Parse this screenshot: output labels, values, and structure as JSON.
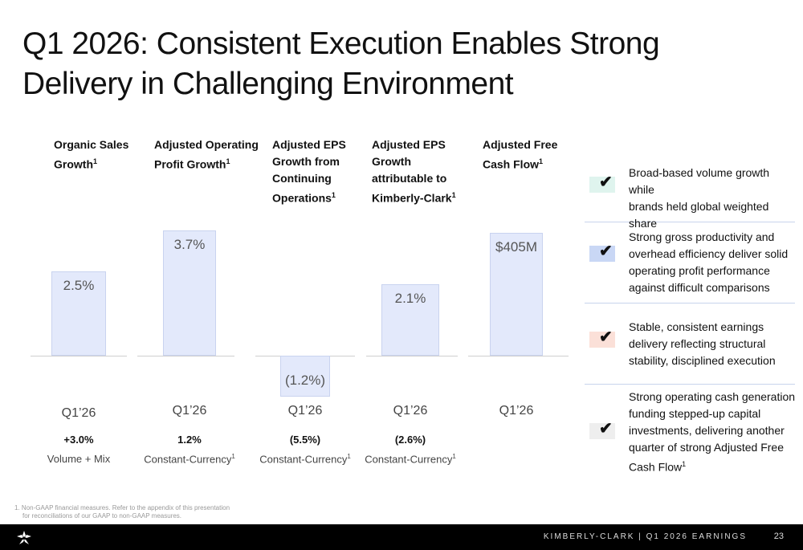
{
  "slide": {
    "title": "Q1 2026: Consistent Execution Enables Strong Delivery in Challenging Environment"
  },
  "chart_data": {
    "type": "bar",
    "title": "",
    "categories": [
      "Organic Sales Growth",
      "Adjusted Operating Profit Growth",
      "Adjusted EPS Growth from Continuing Operations",
      "Adjusted EPS Growth attributable to Kimberly-Clark",
      "Adjusted Free Cash Flow"
    ],
    "series": [
      {
        "name": "Q1'26",
        "values": [
          2.5,
          3.7,
          -1.2,
          2.1,
          405
        ],
        "units": [
          "%",
          "%",
          "%",
          "%",
          "$M"
        ]
      }
    ],
    "metrics": [
      {
        "head_lines": [
          "Organic Sales",
          "Growth"
        ],
        "head_footnote": "1",
        "value": 2.5,
        "value_label": "2.5%",
        "period": "Q1’26",
        "sub_value": "+3.0%",
        "sub_label": "Volume + Mix",
        "sub_footnote": ""
      },
      {
        "head_lines": [
          "Adjusted Operating",
          "Profit Growth"
        ],
        "head_footnote": "1",
        "value": 3.7,
        "value_label": "3.7%",
        "period": "Q1’26",
        "sub_value": "1.2%",
        "sub_label": "Constant-Currency",
        "sub_footnote": "1"
      },
      {
        "head_lines": [
          "Adjusted EPS",
          "Growth from",
          "Continuing",
          "Operations"
        ],
        "head_footnote": "1",
        "value": -1.2,
        "value_label": "(1.2%)",
        "period": "Q1’26",
        "sub_value": "(5.5%)",
        "sub_label": "Constant-Currency",
        "sub_footnote": "1"
      },
      {
        "head_lines": [
          "Adjusted EPS",
          "Growth",
          "attributable to",
          "Kimberly-Clark"
        ],
        "head_footnote": "1",
        "value": 2.1,
        "value_label": "2.1%",
        "period": "Q1’26",
        "sub_value": "(2.6%)",
        "sub_label": "Constant-Currency",
        "sub_footnote": "1"
      },
      {
        "head_lines": [
          "Adjusted Free",
          "Cash Flow"
        ],
        "head_footnote": "1",
        "value": 405,
        "value_label": "$405M",
        "period": "Q1’26",
        "sub_value": "",
        "sub_label": "",
        "sub_footnote": ""
      }
    ]
  },
  "highlights": [
    {
      "lines": [
        "Broad-based volume growth while",
        "brands held global weighted share"
      ],
      "footnote": "",
      "color": "#dff4ee"
    },
    {
      "lines": [
        "Strong gross productivity and",
        "overhead efficiency deliver solid",
        "operating profit performance",
        "against difficult comparisons"
      ],
      "footnote": "",
      "color": "#c9d7f5"
    },
    {
      "lines": [
        "Stable, consistent earnings",
        "delivery reflecting structural",
        "stability, disciplined execution"
      ],
      "footnote": "",
      "color": "#fbe0d8"
    },
    {
      "lines": [
        "Strong operating cash generation",
        "funding stepped-up capital",
        "investments, delivering another",
        "quarter of strong Adjusted Free",
        "Cash Flow"
      ],
      "footnote": "1",
      "color": "#eeeeee"
    }
  ],
  "footnote": {
    "marker": "1.",
    "lines": [
      "Non-GAAP financial measures. Refer to the appendix of this presentation",
      "for reconciliations of our GAAP to non-GAAP measures."
    ]
  },
  "footer": {
    "company": "KIMBERLY-CLARK | Q1 2026 EARNINGS",
    "page": "23",
    "logo_icon": "kimberly-clark-logo-icon"
  }
}
